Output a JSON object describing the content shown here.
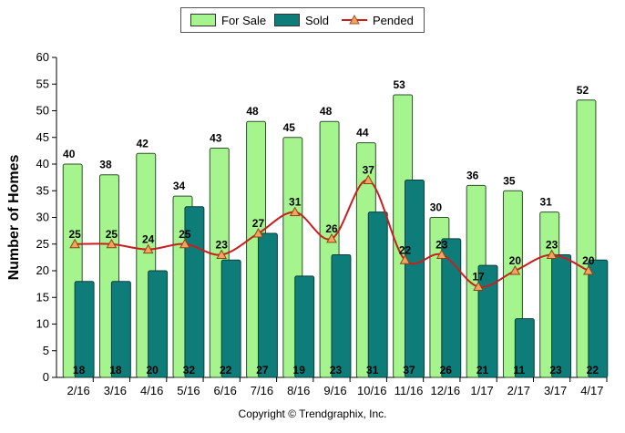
{
  "legend": {
    "for_sale": "For Sale",
    "sold": "Sold",
    "pended": "Pended"
  },
  "copyright": "Copyright © Trendgraphix, Inc.",
  "colors": {
    "for_sale": "#a6f48e",
    "sold": "#0e7d79",
    "pended_line": "#c81e1e",
    "pended_marker": "#f4a460",
    "grid": "#000000"
  },
  "chart_data": {
    "type": "bar",
    "ylabel": "Number of Homes",
    "xlabel": "",
    "ylim": [
      0,
      60
    ],
    "yticks": [
      0,
      5,
      10,
      15,
      20,
      25,
      30,
      35,
      40,
      45,
      50,
      55,
      60
    ],
    "grid": false,
    "legend_position": "top-center",
    "categories": [
      "2/16",
      "3/16",
      "4/16",
      "5/16",
      "6/16",
      "7/16",
      "8/16",
      "9/16",
      "10/16",
      "11/16",
      "12/16",
      "1/17",
      "2/17",
      "3/17",
      "4/17"
    ],
    "series": [
      {
        "name": "For Sale",
        "type": "bar",
        "values": [
          40,
          38,
          42,
          34,
          43,
          48,
          45,
          48,
          44,
          53,
          30,
          36,
          35,
          31,
          52
        ]
      },
      {
        "name": "Sold",
        "type": "bar",
        "values": [
          18,
          18,
          20,
          32,
          22,
          27,
          19,
          23,
          31,
          37,
          26,
          21,
          11,
          23,
          22
        ]
      },
      {
        "name": "Pended",
        "type": "line",
        "values": [
          25,
          25,
          24,
          25,
          23,
          27,
          31,
          26,
          37,
          22,
          23,
          17,
          20,
          23,
          20
        ]
      }
    ]
  }
}
